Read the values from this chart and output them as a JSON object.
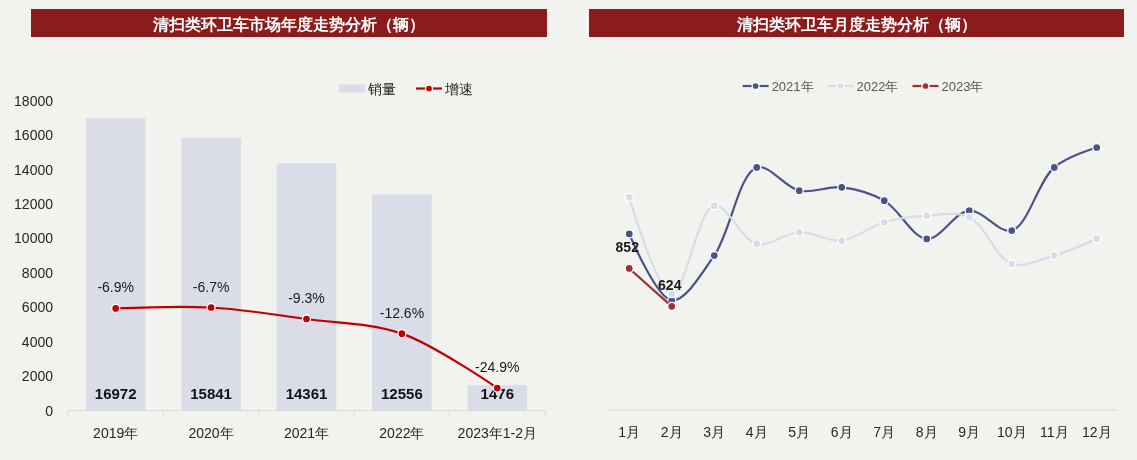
{
  "chart_data": [
    {
      "type": "bar",
      "title": "清扫类环卫车市场年度走势分析（辆）",
      "categories": [
        "2019年",
        "2020年",
        "2021年",
        "2022年",
        "2023年1-2月"
      ],
      "series": [
        {
          "name": "销量",
          "color": "#dadce8",
          "values": [
            16972,
            15841,
            14361,
            12556,
            1476
          ],
          "value_labels": [
            "16972",
            "15841",
            "14361",
            "12556",
            "1476"
          ]
        },
        {
          "name": "增速",
          "type": "line",
          "axis": "y2",
          "color": "#c00000",
          "values": [
            -6.9,
            -6.7,
            -9.3,
            -12.6,
            -24.9
          ],
          "value_labels": [
            "-6.9%",
            "-6.7%",
            "-9.3%",
            "-12.6%",
            "-24.9%"
          ]
        }
      ],
      "ylim": [
        0,
        18000
      ],
      "yticks": [
        0,
        2000,
        4000,
        6000,
        8000,
        10000,
        12000,
        14000,
        16000,
        18000
      ],
      "legend": "top right",
      "marker": "circle"
    },
    {
      "type": "line",
      "title": "清扫类环卫车月度走势分析（辆）",
      "categories": [
        "1月",
        "2月",
        "3月",
        "4月",
        "5月",
        "6月",
        "7月",
        "8月",
        "9月",
        "10月",
        "11月",
        "12月"
      ],
      "series": [
        {
          "name": "2021年",
          "color": "#4a5288",
          "values": [
            1060,
            660,
            930,
            1460,
            1320,
            1340,
            1260,
            1030,
            1200,
            1080,
            1460,
            1580
          ]
        },
        {
          "name": "2022年",
          "color": "#d9dbe9",
          "values": [
            1280,
            700,
            1230,
            1000,
            1070,
            1020,
            1130,
            1170,
            1160,
            880,
            930,
            1030
          ]
        },
        {
          "name": "2023年",
          "color": "#9e3033",
          "values": [
            852,
            624,
            null,
            null,
            null,
            null,
            null,
            null,
            null,
            null,
            null,
            null
          ],
          "value_labels": [
            "852",
            "624",
            null,
            null,
            null,
            null,
            null,
            null,
            null,
            null,
            null,
            null
          ]
        }
      ],
      "tick_labels": "x",
      "legend": "top",
      "marker": "circle"
    }
  ]
}
